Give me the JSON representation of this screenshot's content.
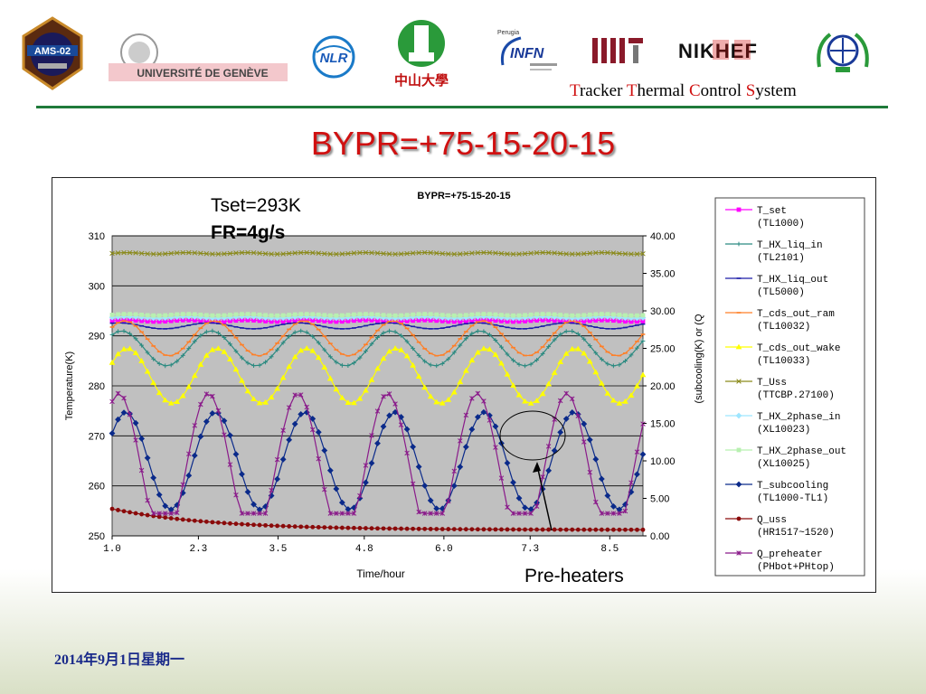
{
  "header": {
    "logos": [
      {
        "icon": "ams02-mission-patch-icon",
        "text": "AMS-02"
      },
      {
        "icon": "universite-de-geneve-logo-icon",
        "text": "UNIVERSITÉ DE GENÈVE"
      },
      {
        "icon": "nlr-logo-icon",
        "text": "NLR"
      },
      {
        "icon": "sun-yat-sen-university-logo-icon",
        "text": "中山大學"
      },
      {
        "icon": "infn-perugia-logo-icon",
        "text": "INFN",
        "small_text": "Perugia"
      },
      {
        "icon": "mit-logo-icon",
        "text": "MIT"
      },
      {
        "icon": "nikhef-logo-icon",
        "text": "NIKHEF"
      },
      {
        "icon": "emblem-logo-icon"
      }
    ],
    "system_title": {
      "p1": "T",
      "w1": "racker ",
      "p2": "T",
      "w2": "hermal ",
      "p3": "C",
      "w3": "ontrol ",
      "p4": "S",
      "w4": "ystem"
    }
  },
  "slide": {
    "title": "BYPR=+75-15-20-15",
    "note_tset": "Tset=293K",
    "note_fr": "FR=4g/s",
    "note_preheaters": "Pre-heaters",
    "date": "2014年9月1日星期一"
  },
  "colors": {
    "accent_red": "#d01010",
    "rule_green": "#1f7a3a",
    "plot_bg": "#c0c0c0"
  },
  "chart_data": {
    "type": "line",
    "title": "BYPR=+75-15-20-15",
    "xlabel": "Time/hour",
    "ylabel": "Temperature(K)",
    "y2label": "(subcooling(K) or (Q",
    "xlim": [
      1.0,
      9.0
    ],
    "xticks": [
      "1.0",
      "2.3",
      "3.5",
      "4.8",
      "6.0",
      "7.3",
      "8.5"
    ],
    "ylim": [
      250,
      310
    ],
    "yticks": [
      "250",
      "260",
      "270",
      "280",
      "290",
      "300",
      "310"
    ],
    "y2lim": [
      0,
      40
    ],
    "y2ticks": [
      "0.00",
      "5.00",
      "10.00",
      "15.00",
      "20.00",
      "25.00",
      "30.00",
      "35.00",
      "40.00"
    ],
    "grid": "horizontal",
    "legend_position": "right",
    "series": [
      {
        "name": "T_set",
        "tag": "(TL1000)",
        "color": "#ff00ff",
        "marker": "square",
        "axis": "left",
        "model": {
          "kind": "const",
          "base": 293.0
        }
      },
      {
        "name": "T_HX_liq_in",
        "tag": "(TL2101)",
        "color": "#2a8a80",
        "marker": "plus",
        "axis": "left",
        "model": {
          "kind": "sine",
          "base": 287.5,
          "amp": 3.5,
          "period": 1.35,
          "phase": 0.9
        }
      },
      {
        "name": "T_HX_liq_out",
        "tag": "(TL5000)",
        "color": "#1a1aa8",
        "marker": "dash",
        "axis": "left",
        "model": {
          "kind": "sine",
          "base": 292.0,
          "amp": 0.6,
          "period": 1.35,
          "phase": 1.1
        }
      },
      {
        "name": "T_cds_out_ram",
        "tag": "(TL10032)",
        "color": "#ff7f27",
        "marker": "dash",
        "axis": "left",
        "model": {
          "kind": "sine",
          "base": 289.5,
          "amp": 3.5,
          "period": 1.35,
          "phase": 0.7
        }
      },
      {
        "name": "T_cds_out_wake",
        "tag": "(TL10033)",
        "color": "#ffff00",
        "marker": "triangle",
        "axis": "left",
        "model": {
          "kind": "sine",
          "base": 282.0,
          "amp": 5.5,
          "period": 1.35,
          "phase": 0.5
        }
      },
      {
        "name": "T_Uss",
        "tag": "(TTCBP.27100)",
        "color": "#8a8a1a",
        "marker": "cross",
        "axis": "left",
        "model": {
          "kind": "const",
          "base": 306.5
        }
      },
      {
        "name": "T_HX_2phase_in",
        "tag": "(XL10023)",
        "color": "#9ee6ff",
        "marker": "diamond",
        "axis": "left",
        "model": {
          "kind": "const",
          "base": 293.7
        }
      },
      {
        "name": "T_HX_2phase_out",
        "tag": "(XL10025)",
        "color": "#b8f0b0",
        "marker": "square",
        "axis": "left",
        "model": {
          "kind": "const",
          "base": 294.2
        }
      },
      {
        "name": "T_subcooling",
        "tag": "(TL1000-TL1)",
        "color": "#0a2a8a",
        "marker": "diamond",
        "axis": "right",
        "model": {
          "kind": "sine",
          "base": 10.0,
          "amp": 6.5,
          "period": 1.35,
          "phase": 0.6
        }
      },
      {
        "name": "Q_uss",
        "tag": "(HR1517~1520)",
        "color": "#8a0a0a",
        "marker": "circle",
        "axis": "right",
        "model": {
          "kind": "decay",
          "base": 0.8,
          "amp": 2.8,
          "tau": 1.5
        }
      },
      {
        "name": "Q_preheater",
        "tag": "(PHbot+PHtop)",
        "color": "#8a1a8a",
        "marker": "star",
        "axis": "right",
        "model": {
          "kind": "clipsine",
          "base": 9.0,
          "amp": 10.0,
          "floor": 3.0,
          "period": 1.35,
          "phase": 1.1
        }
      }
    ]
  }
}
